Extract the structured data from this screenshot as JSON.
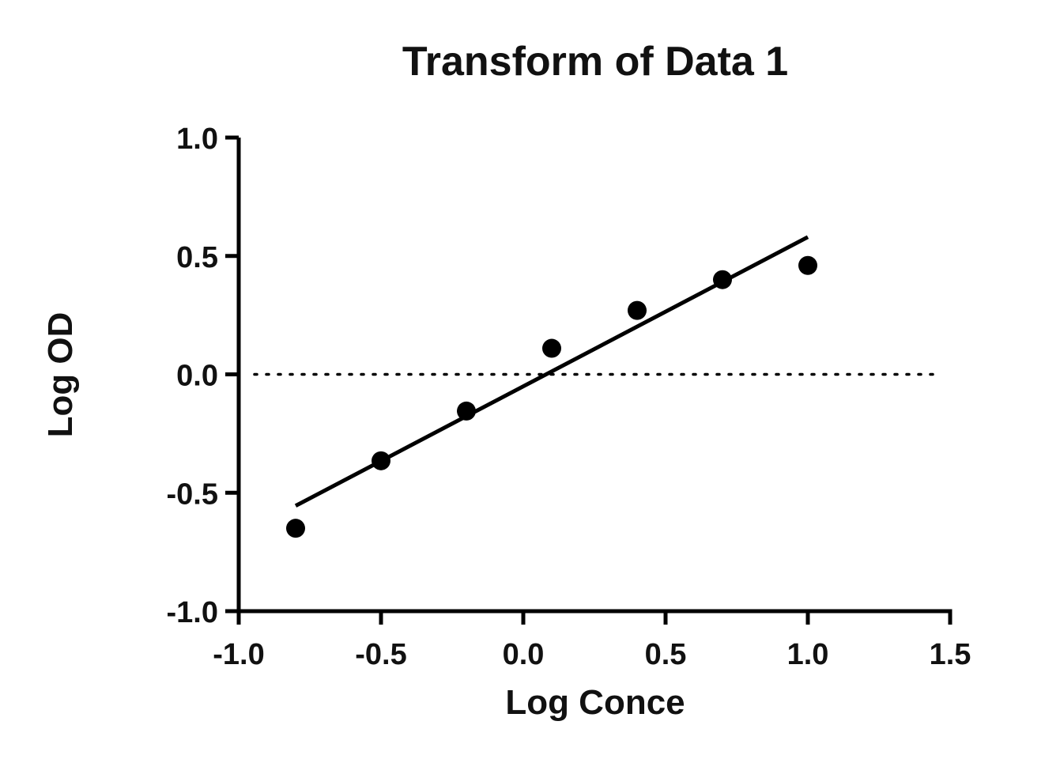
{
  "chart_data": {
    "type": "scatter",
    "title": "Transform of Data 1",
    "xlabel": "Log Conce",
    "ylabel": "Log OD",
    "xlim": [
      -1.0,
      1.5
    ],
    "ylim": [
      -1.0,
      1.0
    ],
    "x_ticks": [
      "-1.0",
      "-0.5",
      "0.0",
      "0.5",
      "1.0",
      "1.5"
    ],
    "y_ticks": [
      "-1.0",
      "-0.5",
      "0.0",
      "0.5",
      "1.0"
    ],
    "x_tick_values": [
      -1.0,
      -0.5,
      0.0,
      0.5,
      1.0,
      1.5
    ],
    "y_tick_values": [
      -1.0,
      -0.5,
      0.0,
      0.5,
      1.0
    ],
    "series": [
      {
        "x": [
          -0.8,
          -0.5,
          -0.2,
          0.1,
          0.4,
          0.7,
          1.0
        ],
        "y": [
          -0.65,
          -0.365,
          -0.155,
          0.11,
          0.27,
          0.4,
          0.46
        ]
      }
    ],
    "fit_line": {
      "x": [
        -0.8,
        1.0
      ],
      "y": [
        -0.555,
        0.58
      ]
    },
    "reference_line": {
      "y": 0.0,
      "style": "dotted",
      "x": [
        -1.0,
        1.5
      ]
    },
    "grid": false,
    "legend": "none"
  }
}
